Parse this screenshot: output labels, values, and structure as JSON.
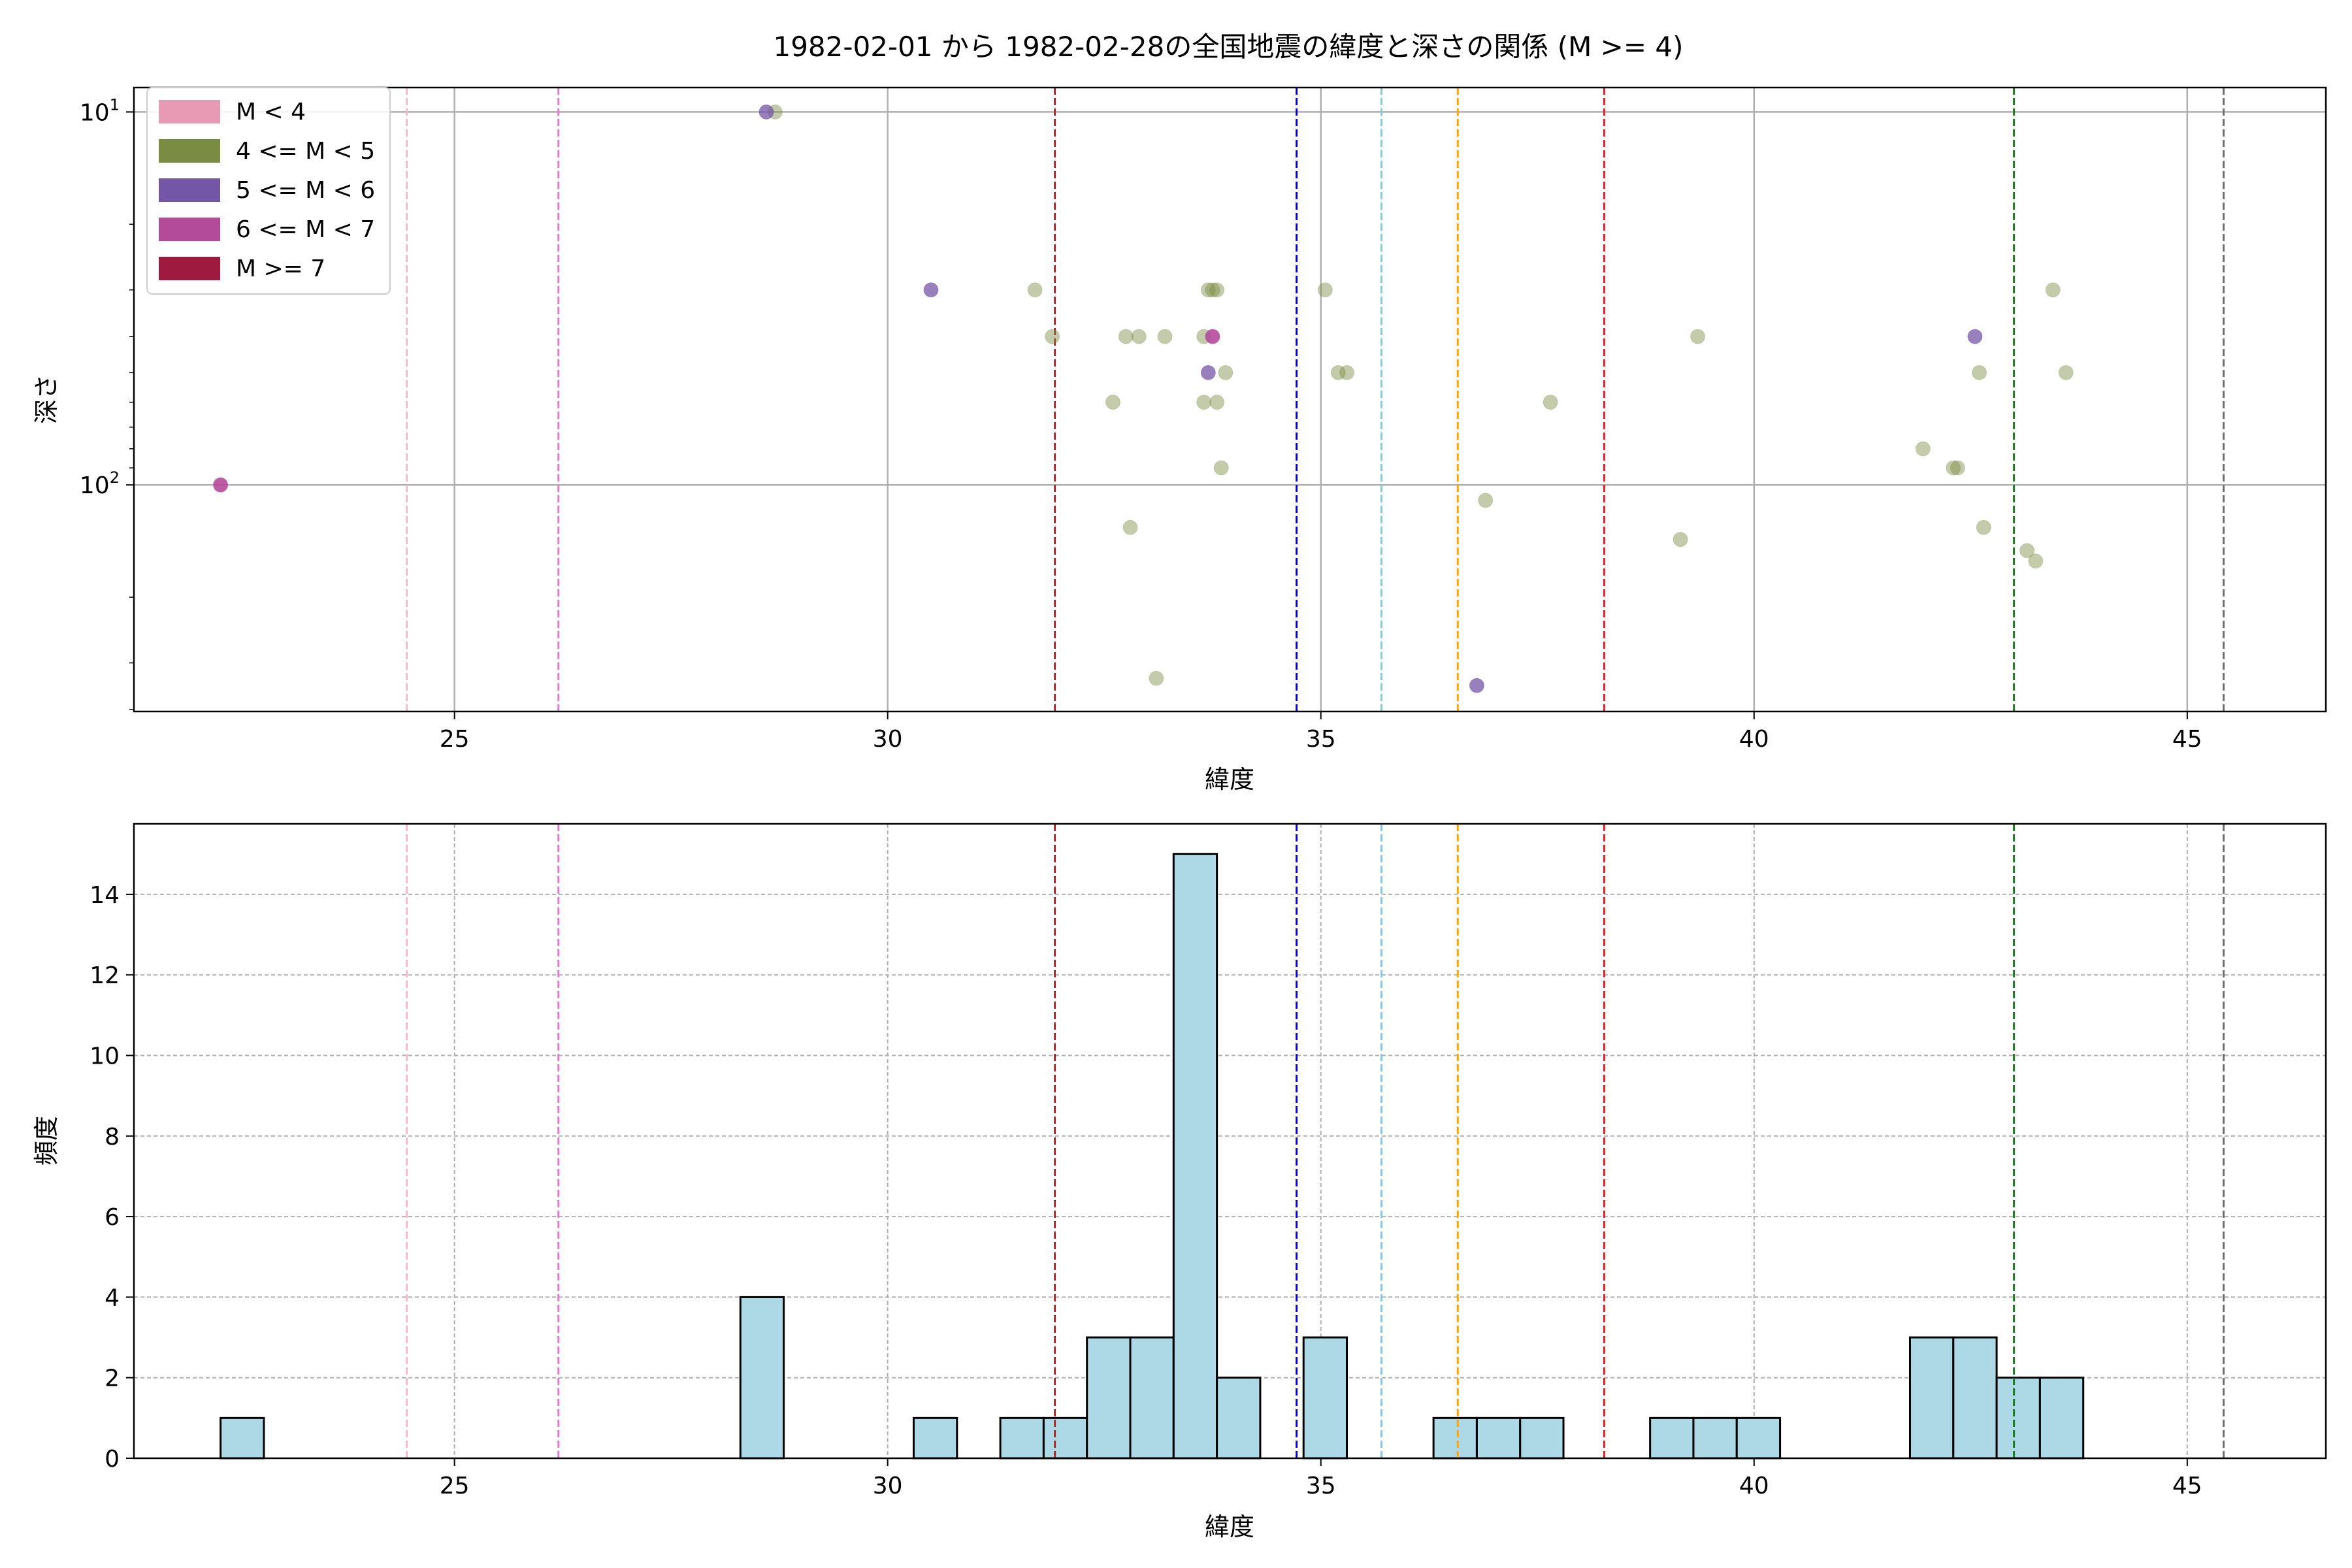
{
  "figure": {
    "title": "1982-02-01 から 1982-02-28の全国地震の緯度と深さの関係 (M >= 4)"
  },
  "legend": {
    "placement": "upper-left",
    "entries": [
      {
        "label": "M < 4",
        "color": "#e899b3"
      },
      {
        "label": "4 <= M < 5",
        "color": "#7a8c42"
      },
      {
        "label": "5 <= M < 6",
        "color": "#7456a6"
      },
      {
        "label": "6 <= M < 7",
        "color": "#b44a9a"
      },
      {
        "label": "M >= 7",
        "color": "#9e1b3f"
      }
    ]
  },
  "reference_lines": [
    {
      "x": 24.45,
      "color": "#f5b8cc"
    },
    {
      "x": 26.2,
      "color": "#e07ad8"
    },
    {
      "x": 31.93,
      "color": "#a52a2a"
    },
    {
      "x": 34.72,
      "color": "#0000e0"
    },
    {
      "x": 35.7,
      "color": "#7ec8e3"
    },
    {
      "x": 36.58,
      "color": "#ffa500"
    },
    {
      "x": 38.27,
      "color": "#e0202a"
    },
    {
      "x": 43.0,
      "color": "#1a7f1a"
    },
    {
      "x": 45.42,
      "color": "#707070"
    }
  ],
  "chart_data": [
    {
      "type": "scatter",
      "xlabel": "緯度",
      "ylabel": "深さ",
      "y_scale": "log",
      "y_inverted": true,
      "xlim": [
        21.3,
        46.6
      ],
      "ylim": [
        405,
        8.6
      ],
      "xticks": [
        25,
        30,
        35,
        40,
        45
      ],
      "yticks": [
        {
          "value": 10,
          "base": "10",
          "exp": "1"
        },
        {
          "value": 100,
          "base": "10",
          "exp": "2"
        }
      ],
      "grid": true,
      "series": [
        {
          "name": "4 <= M < 5",
          "color": "#7a8c42",
          "alpha": 0.45,
          "points": [
            [
              28.7,
              10
            ],
            [
              31.7,
              30
            ],
            [
              33.7,
              30
            ],
            [
              33.75,
              30
            ],
            [
              33.8,
              30
            ],
            [
              35.05,
              30
            ],
            [
              43.45,
              30
            ],
            [
              31.9,
              40
            ],
            [
              32.75,
              40
            ],
            [
              32.9,
              40
            ],
            [
              33.2,
              40
            ],
            [
              33.65,
              40
            ],
            [
              39.35,
              40
            ],
            [
              33.9,
              50
            ],
            [
              35.2,
              50
            ],
            [
              35.3,
              50
            ],
            [
              42.6,
              50
            ],
            [
              43.6,
              50
            ],
            [
              32.6,
              60
            ],
            [
              33.65,
              60
            ],
            [
              33.8,
              60
            ],
            [
              37.65,
              60
            ],
            [
              41.95,
              80
            ],
            [
              42.3,
              90
            ],
            [
              42.35,
              90
            ],
            [
              33.85,
              90
            ],
            [
              36.9,
              110
            ],
            [
              32.8,
              130
            ],
            [
              39.15,
              140
            ],
            [
              42.65,
              130
            ],
            [
              43.15,
              150
            ],
            [
              43.25,
              160
            ],
            [
              33.1,
              330
            ]
          ]
        },
        {
          "name": "5 <= M < 6",
          "color": "#7456a6",
          "alpha": 0.75,
          "points": [
            [
              28.6,
              10
            ],
            [
              30.5,
              30
            ],
            [
              33.7,
              50
            ],
            [
              42.55,
              40
            ],
            [
              36.8,
              345
            ]
          ]
        },
        {
          "name": "6 <= M < 7",
          "color": "#b44a9a",
          "alpha": 0.9,
          "points": [
            [
              22.3,
              100
            ],
            [
              33.75,
              40
            ]
          ]
        }
      ]
    },
    {
      "type": "bar",
      "xlabel": "緯度",
      "ylabel": "頻度",
      "xlim": [
        21.3,
        46.6
      ],
      "ylim": [
        0,
        15.75
      ],
      "xticks": [
        25,
        30,
        35,
        40,
        45
      ],
      "yticks": [
        0,
        2,
        4,
        6,
        8,
        10,
        12,
        14
      ],
      "grid": true,
      "bin_width": 0.5,
      "bar_color": "#add8e6",
      "bins": [
        [
          22.3,
          1
        ],
        [
          28.3,
          4
        ],
        [
          30.3,
          1
        ],
        [
          31.3,
          1
        ],
        [
          31.8,
          1
        ],
        [
          32.3,
          3
        ],
        [
          32.8,
          3
        ],
        [
          33.3,
          15
        ],
        [
          33.8,
          2
        ],
        [
          34.8,
          3
        ],
        [
          36.3,
          1
        ],
        [
          36.8,
          1
        ],
        [
          37.3,
          1
        ],
        [
          38.8,
          1
        ],
        [
          39.3,
          1
        ],
        [
          39.8,
          1
        ],
        [
          41.8,
          3
        ],
        [
          42.3,
          3
        ],
        [
          42.8,
          2
        ],
        [
          43.3,
          2
        ]
      ]
    }
  ]
}
